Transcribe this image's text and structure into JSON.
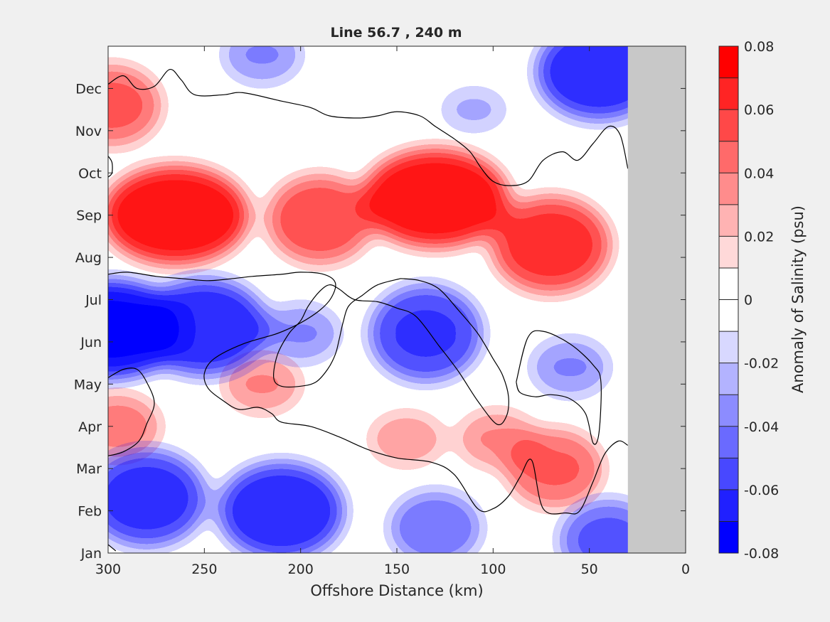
{
  "chart_data": {
    "type": "heatmap",
    "title": "Line 56.7 , 240 m",
    "xlabel": "Offshore Distance (km)",
    "x_ticks": [
      "300",
      "250",
      "200",
      "150",
      "100",
      "50",
      "0"
    ],
    "x_tick_values": [
      300,
      250,
      200,
      150,
      100,
      50,
      0
    ],
    "xlim": [
      300,
      0
    ],
    "x_reversed": true,
    "y_ticks": [
      "Jan",
      "Feb",
      "Mar",
      "Apr",
      "May",
      "Jun",
      "Jul",
      "Aug",
      "Sep",
      "Oct",
      "Nov",
      "Dec"
    ],
    "y_tick_values": [
      0,
      1,
      2,
      3,
      4,
      5,
      6,
      7,
      8,
      9,
      10,
      11
    ],
    "ylim": [
      0,
      12
    ],
    "no_data_region": {
      "x_from": 30,
      "x_to": 0,
      "color": "#c8c8c8"
    },
    "zero_contour": true,
    "colorbar": {
      "label": "Anomaly of Salinity (psu)",
      "clim": [
        -0.08,
        0.08
      ],
      "ticks": [
        "0.08",
        "0.06",
        "0.04",
        "0.02",
        "0",
        "-0.02",
        "-0.04",
        "-0.06",
        "-0.08"
      ],
      "tick_values": [
        0.08,
        0.06,
        0.04,
        0.02,
        0,
        -0.02,
        -0.04,
        -0.06,
        -0.08
      ],
      "levels": [
        -0.08,
        -0.07,
        -0.06,
        -0.05,
        -0.04,
        -0.03,
        -0.02,
        -0.01,
        0,
        0.01,
        0.02,
        0.03,
        0.04,
        0.05,
        0.06,
        0.07,
        0.08
      ],
      "colors": [
        "#0000ff",
        "#2020ff",
        "#4848ff",
        "#6a6aff",
        "#8c8cff",
        "#b3b3ff",
        "#d8d8ff",
        "#ffffff",
        "#ffffff",
        "#ffd9d9",
        "#ffb3b3",
        "#ff8c8c",
        "#ff6a6a",
        "#ff4848",
        "#ff2424",
        "#ff0000"
      ]
    },
    "features": [
      {
        "x": 265,
        "y": 8.0,
        "value": 0.065
      },
      {
        "x": 190,
        "y": 7.9,
        "value": 0.035
      },
      {
        "x": 130,
        "y": 8.4,
        "value": 0.065
      },
      {
        "x": 70,
        "y": 7.3,
        "value": 0.045
      },
      {
        "x": 298,
        "y": 10.6,
        "value": 0.03
      },
      {
        "x": 110,
        "y": 10.5,
        "value": -0.005
      },
      {
        "x": 45,
        "y": 11.4,
        "value": -0.05
      },
      {
        "x": 220,
        "y": 11.8,
        "value": -0.015
      },
      {
        "x": 300,
        "y": 5.3,
        "value": -0.07
      },
      {
        "x": 250,
        "y": 5.35,
        "value": -0.05
      },
      {
        "x": 200,
        "y": 5.2,
        "value": -0.015
      },
      {
        "x": 135,
        "y": 5.2,
        "value": -0.04
      },
      {
        "x": 60,
        "y": 4.4,
        "value": -0.015
      },
      {
        "x": 210,
        "y": 1.0,
        "value": -0.05
      },
      {
        "x": 280,
        "y": 1.3,
        "value": -0.045
      },
      {
        "x": 130,
        "y": 0.6,
        "value": -0.025
      },
      {
        "x": 40,
        "y": 0.3,
        "value": -0.03
      },
      {
        "x": 295,
        "y": 3.0,
        "value": 0.02
      },
      {
        "x": 220,
        "y": 4.0,
        "value": 0.015
      },
      {
        "x": 145,
        "y": 2.7,
        "value": 0.012
      },
      {
        "x": 98,
        "y": 2.7,
        "value": 0.015
      },
      {
        "x": 68,
        "y": 2.0,
        "value": 0.028
      }
    ]
  }
}
